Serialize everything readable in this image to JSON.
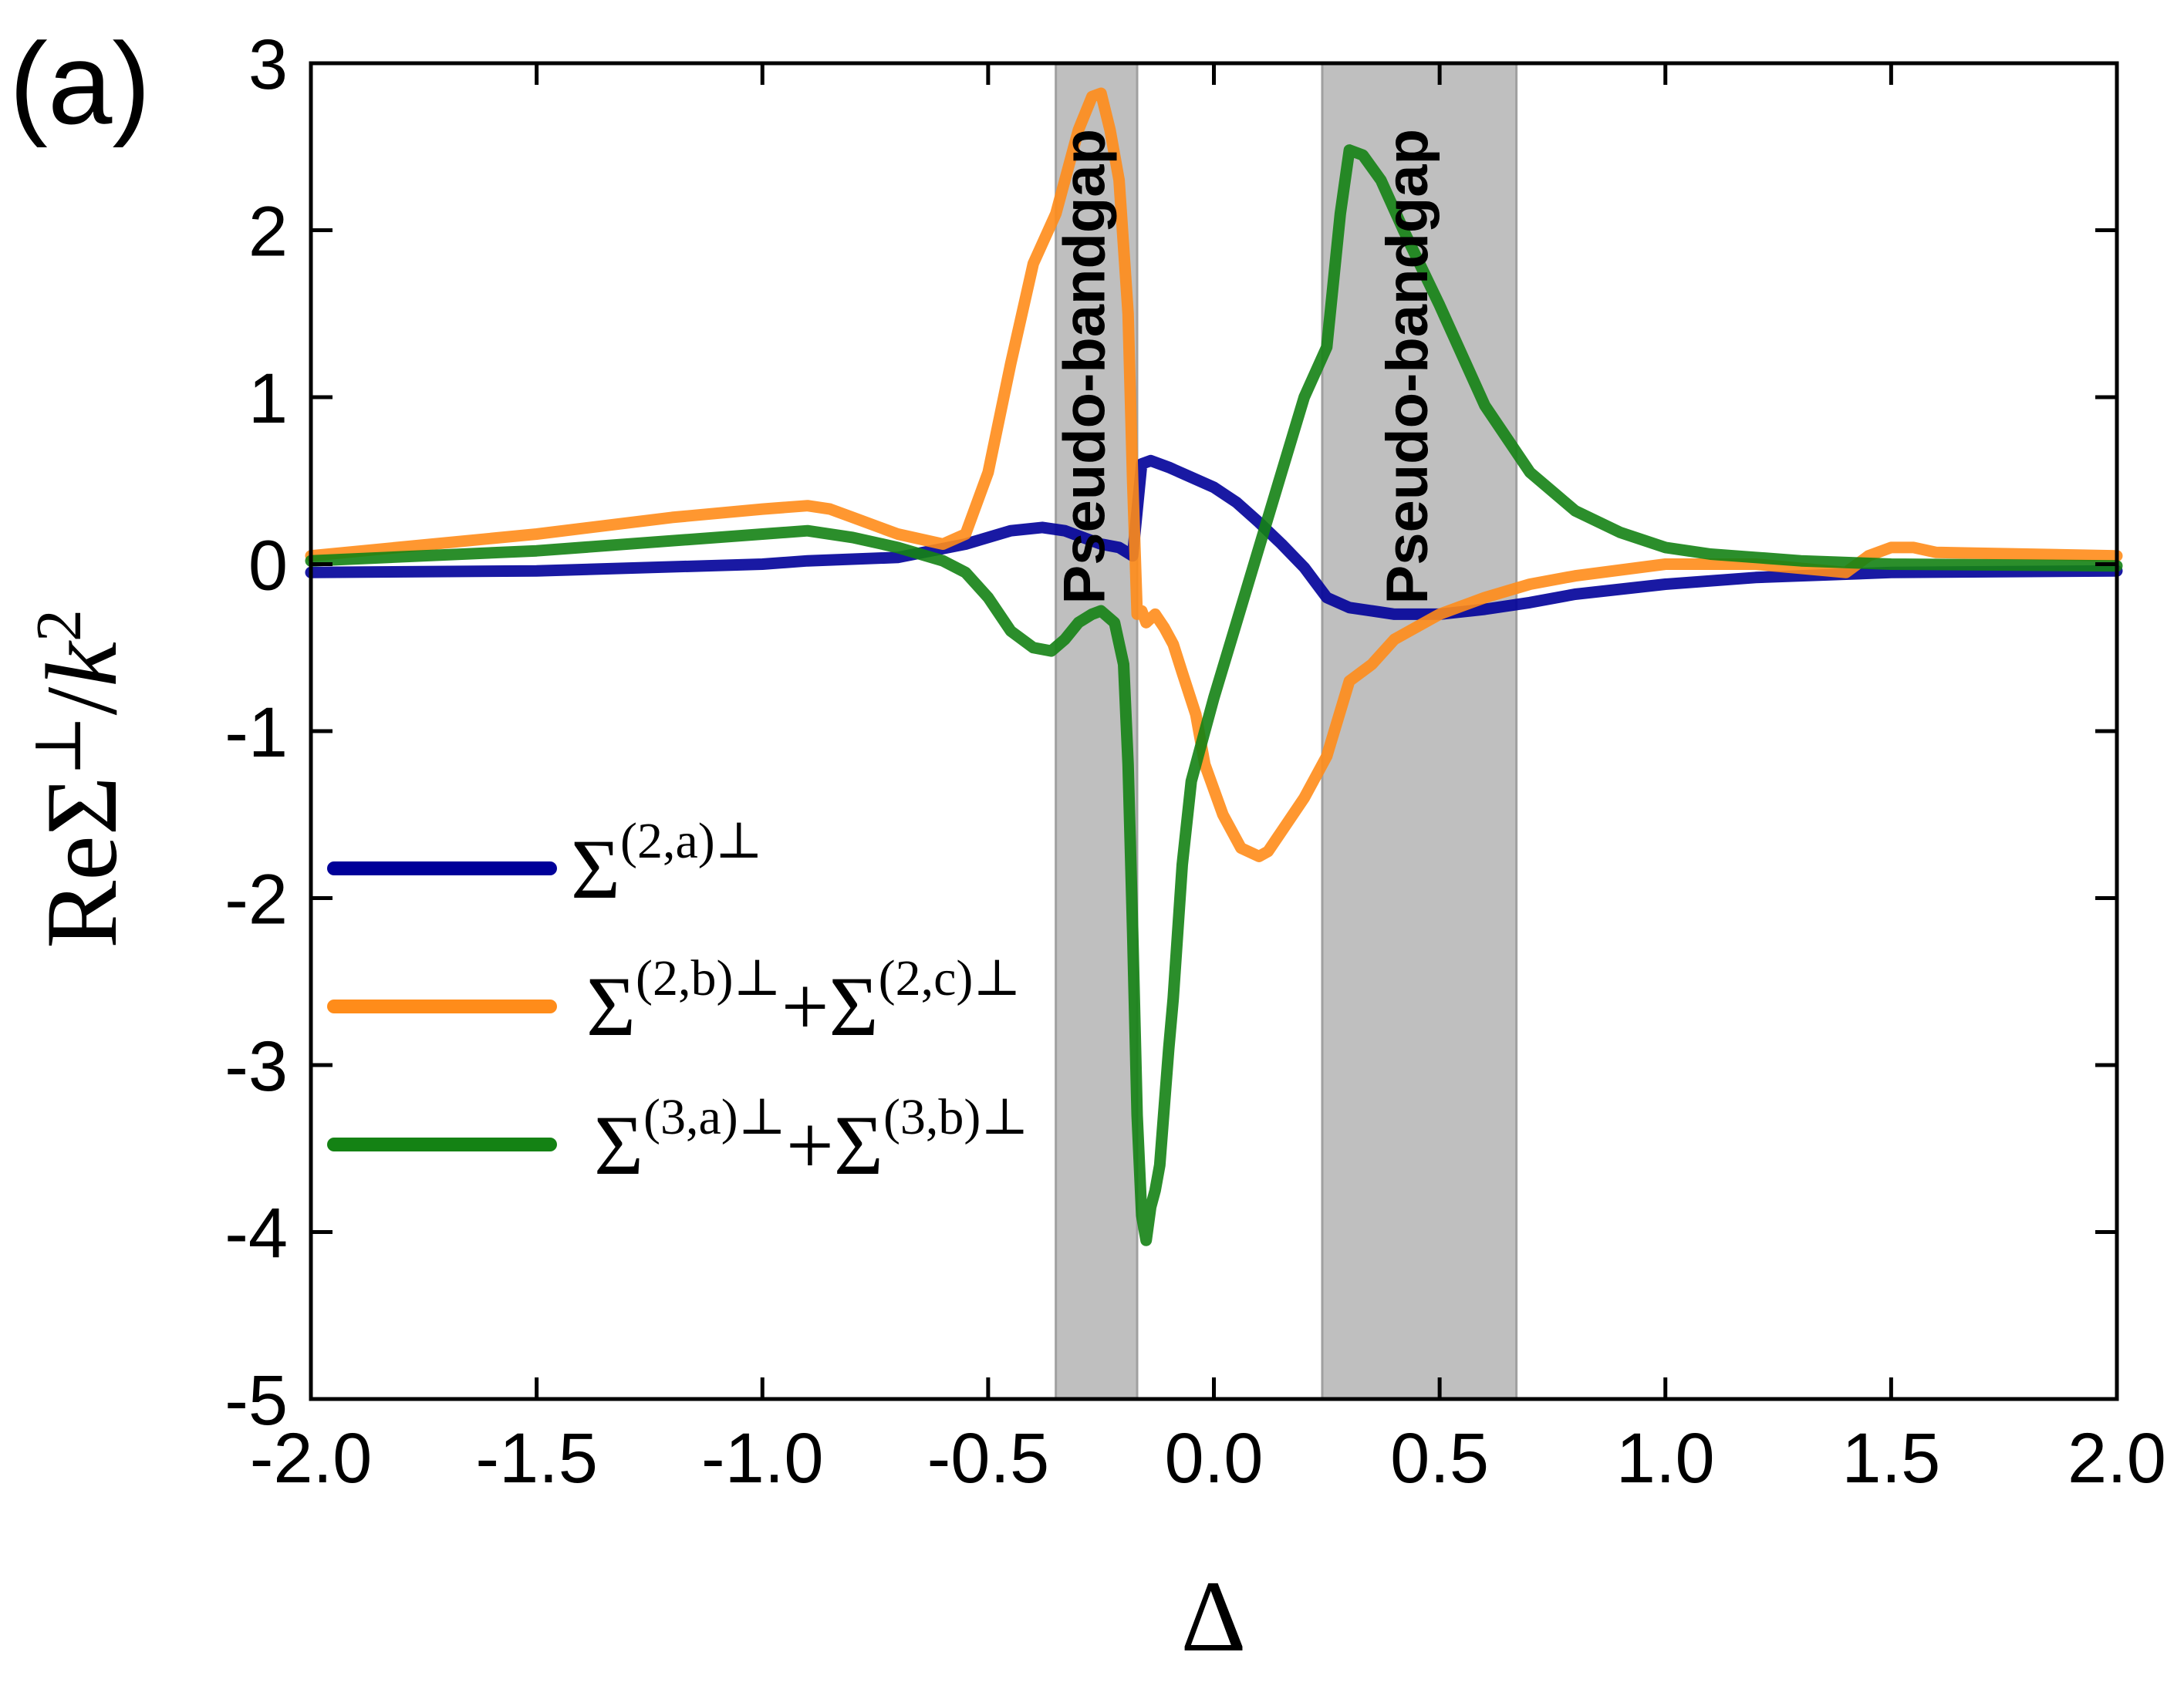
{
  "panel_label": "(a)",
  "chart_data": {
    "type": "line",
    "xlabel": "Δ",
    "ylabel": {
      "prefix": "ReΣ",
      "sup": "⊥",
      "slash": "/",
      "k": "k",
      "k_sup": "2"
    },
    "xlim": [
      -2.0,
      2.0
    ],
    "ylim": [
      -5,
      3
    ],
    "x_ticks": [
      -2.0,
      -1.5,
      -1.0,
      -0.5,
      0.0,
      0.5,
      1.0,
      1.5,
      2.0
    ],
    "x_tick_labels": [
      "-2.0",
      "-1.5",
      "-1.0",
      "-0.5",
      "0.0",
      "0.5",
      "1.0",
      "1.5",
      "2.0"
    ],
    "y_ticks": [
      -5,
      -4,
      -3,
      -2,
      -1,
      0,
      1,
      2,
      3
    ],
    "y_tick_labels": [
      "-5",
      "-4",
      "-3",
      "-2",
      "-1",
      "0",
      "1",
      "2",
      "3"
    ],
    "grid": false,
    "shaded_regions": [
      {
        "x0": -0.35,
        "x1": -0.17,
        "label": "Pseudo-bandgap"
      },
      {
        "x0": 0.24,
        "x1": 0.67,
        "label": "Pseudo-bandgap"
      }
    ],
    "legend_position": "center-left",
    "series": [
      {
        "name": "Σ(2,a)⊥",
        "legend": {
          "base": "Σ",
          "sup": "(2,a)⊥"
        },
        "color": "#000099",
        "x": [
          -2.0,
          -1.5,
          -1.0,
          -0.9,
          -0.7,
          -0.55,
          -0.45,
          -0.38,
          -0.33,
          -0.28,
          -0.25,
          -0.21,
          -0.18,
          -0.16,
          -0.14,
          -0.1,
          -0.05,
          0.0,
          0.05,
          0.1,
          0.15,
          0.2,
          0.25,
          0.3,
          0.35,
          0.4,
          0.5,
          0.6,
          0.7,
          0.8,
          1.0,
          1.2,
          1.5,
          2.0
        ],
        "y": [
          -0.05,
          -0.04,
          0.0,
          0.02,
          0.04,
          0.12,
          0.2,
          0.22,
          0.2,
          0.15,
          0.12,
          0.1,
          0.05,
          0.6,
          0.62,
          0.58,
          0.52,
          0.46,
          0.37,
          0.25,
          0.12,
          -0.02,
          -0.2,
          -0.26,
          -0.28,
          -0.3,
          -0.3,
          -0.27,
          -0.23,
          -0.18,
          -0.12,
          -0.08,
          -0.05,
          -0.04
        ]
      },
      {
        "name": "Σ(2,b)⊥+Σ(2,c)⊥",
        "legend": {
          "base1": "Σ",
          "sup1": "(2,b)⊥",
          "plus": "+",
          "base2": "Σ",
          "sup2": "(2,c)⊥"
        },
        "color": "#ff8c1a",
        "x": [
          -2.0,
          -1.5,
          -1.2,
          -1.0,
          -0.9,
          -0.85,
          -0.8,
          -0.7,
          -0.6,
          -0.55,
          -0.5,
          -0.45,
          -0.4,
          -0.35,
          -0.3,
          -0.27,
          -0.25,
          -0.23,
          -0.21,
          -0.19,
          -0.18,
          -0.17,
          -0.16,
          -0.15,
          -0.13,
          -0.11,
          -0.09,
          -0.07,
          -0.04,
          -0.02,
          0.02,
          0.06,
          0.1,
          0.12,
          0.15,
          0.2,
          0.25,
          0.3,
          0.35,
          0.4,
          0.5,
          0.6,
          0.7,
          0.8,
          1.0,
          1.2,
          1.4,
          1.45,
          1.5,
          1.55,
          1.6,
          2.0
        ],
        "y": [
          0.05,
          0.18,
          0.28,
          0.33,
          0.35,
          0.33,
          0.28,
          0.18,
          0.12,
          0.18,
          0.55,
          1.2,
          1.8,
          2.1,
          2.6,
          2.8,
          2.82,
          2.6,
          2.3,
          1.5,
          0.5,
          -0.3,
          -0.28,
          -0.35,
          -0.3,
          -0.38,
          -0.48,
          -0.65,
          -0.9,
          -1.2,
          -1.5,
          -1.7,
          -1.75,
          -1.72,
          -1.6,
          -1.4,
          -1.15,
          -0.7,
          -0.6,
          -0.45,
          -0.3,
          -0.2,
          -0.12,
          -0.07,
          0.0,
          0.0,
          -0.05,
          0.05,
          0.1,
          0.1,
          0.07,
          0.05
        ]
      },
      {
        "name": "Σ(3,a)⊥+Σ(3,b)⊥",
        "legend": {
          "base1": "Σ",
          "sup1": "(3,a)⊥",
          "plus": "+",
          "base2": "Σ",
          "sup2": "(3,b)⊥"
        },
        "color": "#148214",
        "x": [
          -2.0,
          -1.5,
          -1.0,
          -0.9,
          -0.8,
          -0.7,
          -0.6,
          -0.55,
          -0.5,
          -0.45,
          -0.4,
          -0.36,
          -0.33,
          -0.3,
          -0.27,
          -0.25,
          -0.22,
          -0.2,
          -0.19,
          -0.18,
          -0.17,
          -0.16,
          -0.15,
          -0.14,
          -0.13,
          -0.12,
          -0.1,
          -0.09,
          -0.07,
          -0.05,
          -0.03,
          0.0,
          0.05,
          0.1,
          0.15,
          0.2,
          0.25,
          0.28,
          0.3,
          0.33,
          0.37,
          0.42,
          0.5,
          0.6,
          0.7,
          0.8,
          0.9,
          1.0,
          1.1,
          1.2,
          1.3,
          1.5,
          2.0
        ],
        "y": [
          0.02,
          0.08,
          0.18,
          0.2,
          0.16,
          0.1,
          0.02,
          -0.05,
          -0.2,
          -0.4,
          -0.5,
          -0.52,
          -0.45,
          -0.35,
          -0.3,
          -0.28,
          -0.35,
          -0.6,
          -1.2,
          -2.2,
          -3.3,
          -3.9,
          -4.05,
          -3.85,
          -3.75,
          -3.6,
          -2.9,
          -2.6,
          -1.8,
          -1.3,
          -1.1,
          -0.8,
          -0.35,
          0.1,
          0.55,
          1.0,
          1.3,
          2.1,
          2.48,
          2.45,
          2.3,
          2.0,
          1.55,
          0.95,
          0.55,
          0.32,
          0.19,
          0.1,
          0.06,
          0.04,
          0.02,
          0.0,
          -0.01
        ]
      }
    ]
  }
}
